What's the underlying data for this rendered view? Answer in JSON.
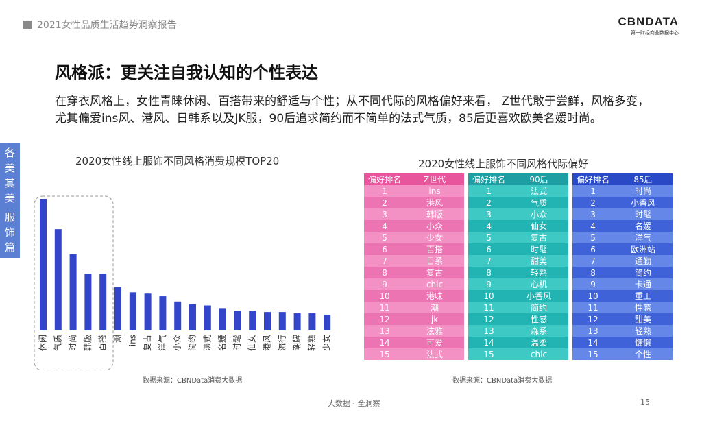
{
  "header": {
    "report_title": "2021女性品质生活趋势洞察报告",
    "logo_main": "CBNDATA",
    "logo_sub": "第一财经商业数据中心"
  },
  "slide": {
    "heading": "风格派：更关注自我认知的个性表达",
    "intro": "在穿衣风格上，女性青睐休闲、百搭带来的舒适与个性；从不同代际的风格偏好来看， Z世代敢于尝鲜，风格多变，尤其偏爱ins风、港风、日韩系以及JK服，90后追求简约而不简单的法式气质，85后更喜欢欧美名媛时尚。"
  },
  "side_tabs": [
    {
      "chars": [
        "各",
        "美",
        "其",
        "美"
      ]
    },
    {
      "chars": [
        "服",
        "饰",
        "篇"
      ]
    }
  ],
  "chart_data": [
    {
      "type": "bar",
      "title": "2020女性线上服饰不同风格消费规模TOP20",
      "categories": [
        "休闲",
        "气质",
        "时尚",
        "韩版",
        "百搭",
        "潮",
        "ins",
        "复古",
        "洋气",
        "小众",
        "简约",
        "法式",
        "名媛",
        "时髦",
        "仙女",
        "港风",
        "流行",
        "潮牌",
        "轻熟",
        "少女"
      ],
      "values": [
        100,
        77,
        58,
        43,
        43,
        33,
        29,
        28,
        26,
        22,
        20,
        19,
        17,
        15,
        15,
        14,
        14,
        13,
        13,
        12
      ],
      "highlight_range": [
        0,
        4
      ],
      "color": "#3345c8",
      "highlight_border_color": "#999999",
      "source": "数据来源：CBNData消费大数据"
    },
    {
      "type": "table",
      "title": "2020女性线上服饰不同风格代际偏好",
      "source": "数据来源：CBNData消费大数据",
      "tables": [
        {
          "rank_header": "偏好排名",
          "gen_header": "Z世代",
          "header_color": "#e8559c",
          "row_colors": [
            "#f390c4",
            "#ed74b3"
          ],
          "rows": [
            "ins",
            "港风",
            "韩版",
            "小众",
            "少女",
            "百搭",
            "日系",
            "复古",
            "chic",
            "港味",
            "潮",
            "jk",
            "泫雅",
            "可爱",
            "法式"
          ]
        },
        {
          "rank_header": "偏好排名",
          "gen_header": "90后",
          "header_color": "#1d9ea3",
          "row_colors": [
            "#3fc9c4",
            "#22b4b3"
          ],
          "rows": [
            "法式",
            "气质",
            "小众",
            "仙女",
            "复古",
            "时髦",
            "甜美",
            "轻熟",
            "心机",
            "小香风",
            "简约",
            "性感",
            "森系",
            "温柔",
            "chic"
          ]
        },
        {
          "rank_header": "偏好排名",
          "gen_header": "85后",
          "header_color": "#2a49c6",
          "row_colors": [
            "#6487e8",
            "#3f62d8"
          ],
          "rows": [
            "时尚",
            "小香风",
            "时髦",
            "名媛",
            "洋气",
            "欧洲站",
            "通勤",
            "简约",
            "卡通",
            "重工",
            "性感",
            "甜美",
            "轻熟",
            "慵懒",
            "个性"
          ]
        }
      ]
    }
  ],
  "footer": {
    "tagline": "大数据 · 全洞察",
    "page_number": "15"
  }
}
